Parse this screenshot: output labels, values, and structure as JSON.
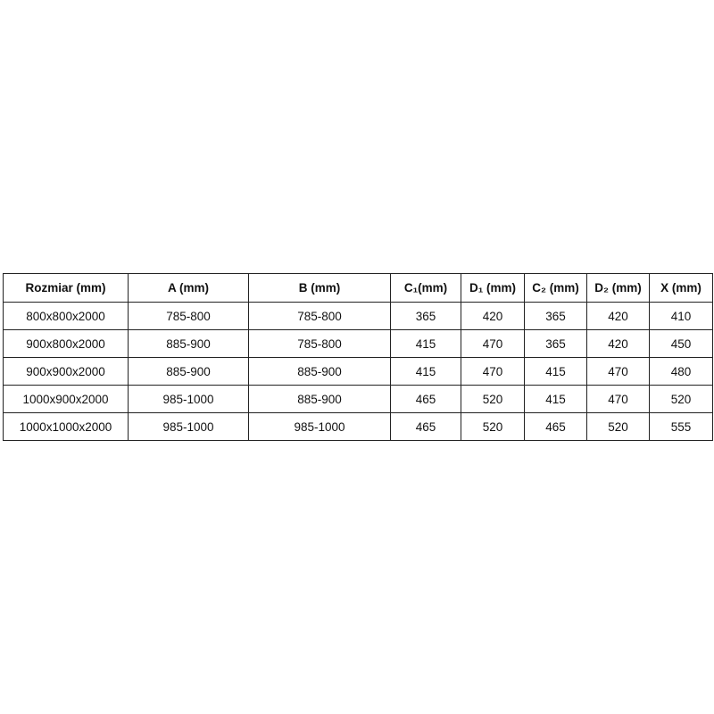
{
  "table": {
    "headers": [
      "Rozmiar (mm)",
      "A (mm)",
      "B (mm)",
      "C₁(mm)",
      "D₁ (mm)",
      "C₂ (mm)",
      "D₂ (mm)",
      "X (mm)"
    ],
    "rows": [
      [
        "800x800x2000",
        "785-800",
        "785-800",
        "365",
        "420",
        "365",
        "420",
        "410"
      ],
      [
        "900x800x2000",
        "885-900",
        "785-800",
        "415",
        "470",
        "365",
        "420",
        "450"
      ],
      [
        "900x900x2000",
        "885-900",
        "885-900",
        "415",
        "470",
        "415",
        "470",
        "480"
      ],
      [
        "1000x900x2000",
        "985-1000",
        "885-900",
        "465",
        "520",
        "415",
        "470",
        "520"
      ],
      [
        "1000x1000x2000",
        "985-1000",
        "985-1000",
        "465",
        "520",
        "465",
        "520",
        "555"
      ]
    ]
  }
}
